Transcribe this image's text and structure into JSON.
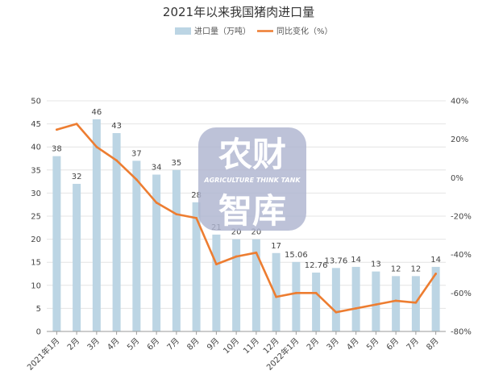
{
  "chart_data": {
    "type": "bar+line",
    "title": "2021年以来我国猪肉进口量",
    "legend_position": "top-center",
    "categories": [
      "2021年1月",
      "2月",
      "3月",
      "4月",
      "5月",
      "6月",
      "7月",
      "8月",
      "9月",
      "10月",
      "11月",
      "12月",
      "2022年1月",
      "2月",
      "3月",
      "4月",
      "5月",
      "6月",
      "7月",
      "8月"
    ],
    "series": [
      {
        "name": "进口量（万吨）",
        "type": "bar",
        "axis": "left",
        "color": "#bcd5e4",
        "values": [
          38,
          32,
          46,
          43,
          37,
          34,
          35,
          28,
          21,
          20,
          20,
          17,
          15.06,
          12.76,
          13.76,
          14,
          13,
          12,
          12,
          14
        ],
        "labels": [
          "38",
          "32",
          "46",
          "43",
          "37",
          "34",
          "35",
          "28",
          "21",
          "20",
          "20",
          "17",
          "15.06",
          "12.76",
          "13.76",
          "14",
          "13",
          "12",
          "12",
          "14"
        ]
      },
      {
        "name": "同比变化（%）",
        "type": "line",
        "axis": "right",
        "color": "#ed7d31",
        "values": [
          25,
          28,
          16,
          9,
          -1,
          -13,
          -19,
          -21,
          -45,
          -41,
          -39,
          -62,
          -60,
          -60,
          -70,
          -68,
          -66,
          -64,
          -65,
          -50
        ]
      }
    ],
    "left_axis": {
      "min": 0,
      "max": 50,
      "ticks": [
        "0",
        "5",
        "10",
        "15",
        "20",
        "25",
        "30",
        "35",
        "40",
        "45",
        "50"
      ]
    },
    "right_axis": {
      "min": -80,
      "max": 40,
      "ticks": [
        "-80%",
        "-60%",
        "-40%",
        "-20%",
        "0%",
        "20%",
        "40%"
      ]
    },
    "grid": true
  },
  "watermark": {
    "line1": "农财",
    "line2": "AGRICULTURE THINK TANK",
    "line3": "智库"
  }
}
